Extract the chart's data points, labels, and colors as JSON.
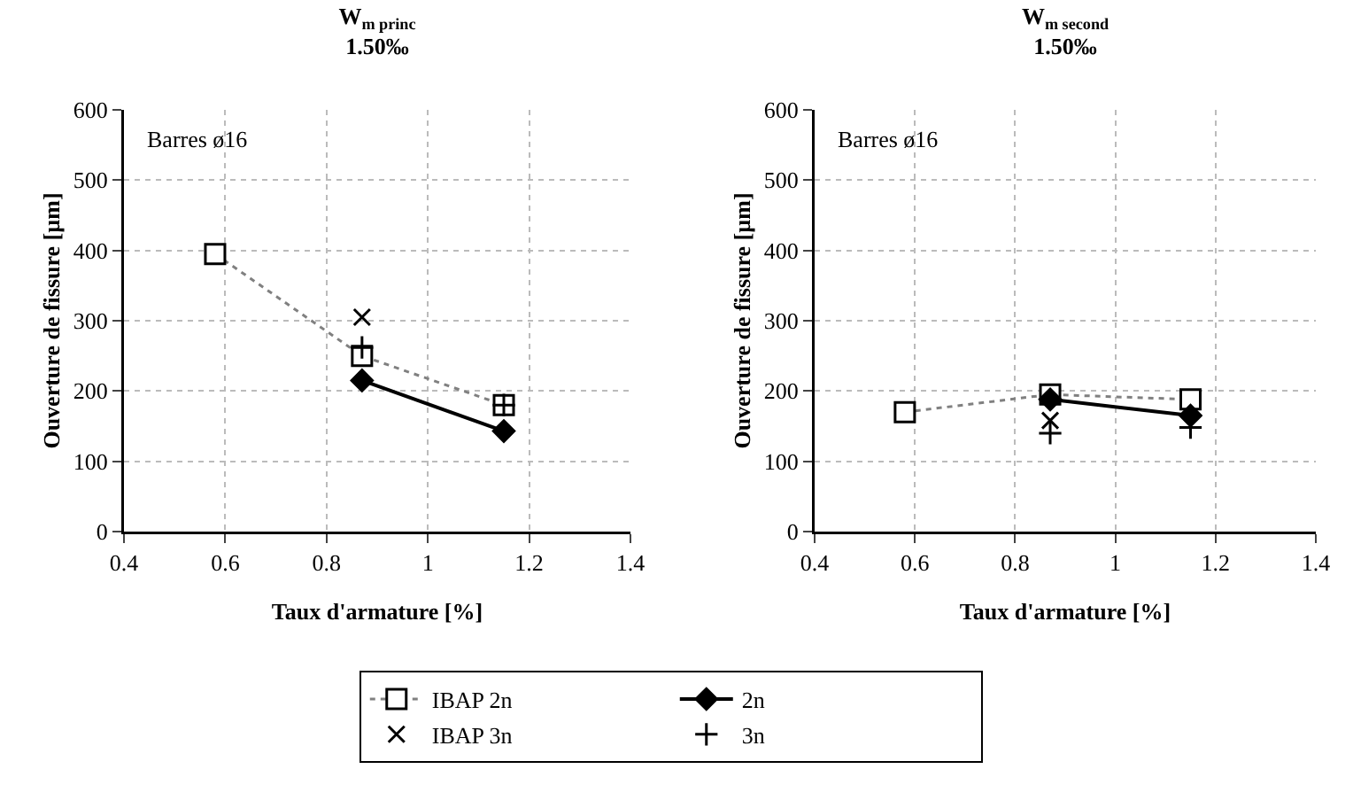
{
  "chart_data": [
    {
      "type": "line",
      "title": "W$_{m princ}$",
      "subtitle": "1.50‰",
      "xlabel": "Taux d'armature [%]",
      "ylabel": "Ouverture de fissure [µm]",
      "annotations": [
        "Barres ø16"
      ],
      "xlim": [
        0.4,
        1.4
      ],
      "xticks": [
        0.4,
        0.6,
        0.8,
        1,
        1.2,
        1.4
      ],
      "ylim": [
        0,
        600
      ],
      "yticks": [
        0,
        100,
        200,
        300,
        400,
        500,
        600
      ],
      "grid": true,
      "legend": "bottom",
      "series": [
        {
          "name": "IBAP 2n",
          "color": "#808080",
          "marker": "square",
          "line_style": "dotted",
          "x": [
            0.58,
            0.87,
            1.15
          ],
          "values": [
            395,
            250,
            180
          ]
        },
        {
          "name": "2n",
          "color": "#000000",
          "marker": "diamond",
          "line_style": "solid",
          "x": [
            0.87,
            1.15
          ],
          "values": [
            215,
            143
          ]
        },
        {
          "name": "IBAP 3n",
          "type": "scatter",
          "color": "#000000",
          "marker": "x",
          "x": [
            0.87
          ],
          "values": [
            305
          ]
        },
        {
          "name": "3n",
          "type": "scatter",
          "color": "#000000",
          "marker": "cross",
          "x": [
            0.87,
            1.15
          ],
          "values": [
            262,
            180
          ]
        }
      ]
    },
    {
      "type": "line",
      "title": "W$_{m second}$",
      "subtitle": "1.50‰",
      "xlabel": "Taux d'armature [%]",
      "ylabel": "Ouverture de fissure [µm]",
      "annotations": [
        "Barres ø16"
      ],
      "xlim": [
        0.4,
        1.4
      ],
      "xticks": [
        0.4,
        0.6,
        0.8,
        1,
        1.2,
        1.4
      ],
      "ylim": [
        0,
        600
      ],
      "yticks": [
        0,
        100,
        200,
        300,
        400,
        500,
        600
      ],
      "grid": true,
      "series": [
        {
          "color": "#808080",
          "marker": "square",
          "line_style": "dotted",
          "x": [
            0.58,
            0.87,
            1.15
          ],
          "values": [
            170,
            195,
            188
          ]
        },
        {
          "color": "#000000",
          "marker": "diamond",
          "line_style": "solid",
          "x": [
            0.87,
            1.15
          ],
          "values": [
            188,
            165
          ]
        },
        {
          "type": "scatter",
          "color": "#000000",
          "marker": "x",
          "x": [
            0.87
          ],
          "values": [
            158
          ]
        },
        {
          "type": "scatter",
          "color": "#000000",
          "marker": "cross",
          "x": [
            0.87,
            1.15
          ],
          "values": [
            140,
            148
          ]
        }
      ]
    }
  ]
}
